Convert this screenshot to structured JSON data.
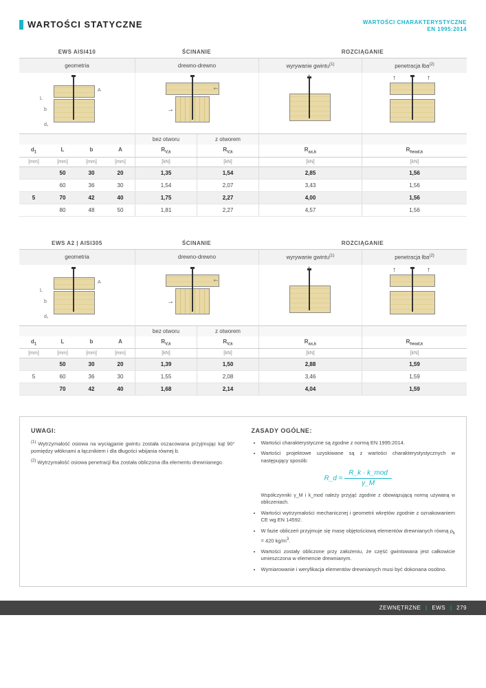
{
  "header": {
    "title": "WARTOŚCI STATYCZNE",
    "subtitle_line1": "WARTOŚCI CHARAKTERYSTYCZNE",
    "subtitle_line2": "EN 1995:2014",
    "accent_color": "#19b6c9"
  },
  "tables": [
    {
      "product": "EWS AISI410",
      "group_headers": {
        "shear": "ŚCINANIE",
        "tension": "ROZCIĄGANIE"
      },
      "sub_headers": {
        "geom": "geometria",
        "drewno": "drewno-drewno",
        "wyr": "wyrywanie gwintu(1)",
        "pen": "penetracja łba(2)"
      },
      "col_headers": {
        "bez": "bez otworu",
        "z": "z otworem"
      },
      "symbols": {
        "d1": "d₁",
        "L": "L",
        "b": "b",
        "A": "A",
        "rv1": "R_V,k",
        "rv2": "R_V,k",
        "rax": "R_ax,k",
        "rhead": "R_head,k"
      },
      "units": {
        "d1": "[mm]",
        "L": "[mm]",
        "b": "[mm]",
        "A": "[mm]",
        "rv1": "[kN]",
        "rv2": "[kN]",
        "rax": "[kN]",
        "rhead": "[kN]"
      },
      "d1_value": "5",
      "rows": [
        {
          "L": "50",
          "b": "30",
          "A": "20",
          "rv1": "1,35",
          "rv2": "1,54",
          "rax": "2,85",
          "rhead": "1,56",
          "hl": true
        },
        {
          "L": "60",
          "b": "36",
          "A": "30",
          "rv1": "1,54",
          "rv2": "2,07",
          "rax": "3,43",
          "rhead": "1,56",
          "hl": false
        },
        {
          "L": "70",
          "b": "42",
          "A": "40",
          "rv1": "1,75",
          "rv2": "2,27",
          "rax": "4,00",
          "rhead": "1,56",
          "hl": true
        },
        {
          "L": "80",
          "b": "48",
          "A": "50",
          "rv1": "1,81",
          "rv2": "2,27",
          "rax": "4,57",
          "rhead": "1,56",
          "hl": false
        }
      ]
    },
    {
      "product": "EWS A2 | AISI305",
      "group_headers": {
        "shear": "ŚCINANIE",
        "tension": "ROZCIĄGANIE"
      },
      "sub_headers": {
        "geom": "geometria",
        "drewno": "drewno-drewno",
        "wyr": "wyrywanie gwintu(1)",
        "pen": "penetracja łba(2)"
      },
      "col_headers": {
        "bez": "bez otworu",
        "z": "z otworem"
      },
      "symbols": {
        "d1": "d₁",
        "L": "L",
        "b": "b",
        "A": "A",
        "rv1": "R_V,k",
        "rv2": "R_V,k",
        "rax": "R_ax,k",
        "rhead": "R_head,k"
      },
      "units": {
        "d1": "[mm]",
        "L": "[mm]",
        "b": "[mm]",
        "A": "[mm]",
        "rv1": "[kN]",
        "rv2": "[kN]",
        "rax": "[kN]",
        "rhead": "[kN]"
      },
      "d1_value": "5",
      "rows": [
        {
          "L": "50",
          "b": "30",
          "A": "20",
          "rv1": "1,39",
          "rv2": "1,50",
          "rax": "2,88",
          "rhead": "1,59",
          "hl": true
        },
        {
          "L": "60",
          "b": "36",
          "A": "30",
          "rv1": "1,55",
          "rv2": "2,08",
          "rax": "3,46",
          "rhead": "1,59",
          "hl": false
        },
        {
          "L": "70",
          "b": "42",
          "A": "40",
          "rv1": "1,68",
          "rv2": "2,14",
          "rax": "4,04",
          "rhead": "1,59",
          "hl": true
        }
      ]
    }
  ],
  "notes": {
    "uwagi_title": "UWAGI:",
    "uwagi": [
      "(1) Wytrzymałość osiowa na wyciąganie gwintu została oszacowana przyjmując kąt 90° pomiędzy włóknami a łącznikiem i dla długości wbijania równej b.",
      "(2) Wytrzymałość osiowa penetracji łba została obliczona dla elementu drewnianego."
    ],
    "zasady_title": "ZASADY OGÓLNE:",
    "zasady_intro1": "Wartości charakterystyczne są zgodne z normą EN 1995:2014.",
    "zasady_intro2": "Wartości projektowe uzyskiwane są z wartości charakterystystycznych w następujący sposób:",
    "formula": {
      "lhs": "R_d",
      "num": "R_k · k_mod",
      "den": "γ_M"
    },
    "zasady_note": "Współczynniki γ_M i k_mod należy przyjąć zgodnie z obowiązującą normą używaną w obliczeniach.",
    "zasady_bullets": [
      "Wartości wytrzymałości mechanicznej i geometrii wkrętów zgodnie z oznakowaniem CE wg EN 14592.",
      "W fazie obliczeń przyjmuje się masę objętościową elementów drewnianych równą ρ_k = 420 kg/m³.",
      "Wartości zostały obliczone przy założeniu, że część gwintowana jest całkowicie umieszczona w elemencie drewnianym.",
      "Wymiarowanie i weryfikacja elementów drewnianych musi być dokonana osobno."
    ]
  },
  "footer": {
    "left": "ZEWNĘTRZNE",
    "mid": "EWS",
    "page": "279"
  },
  "diagram_labels": {
    "L": "L",
    "b": "b",
    "d1": "d₁",
    "A": "A"
  }
}
